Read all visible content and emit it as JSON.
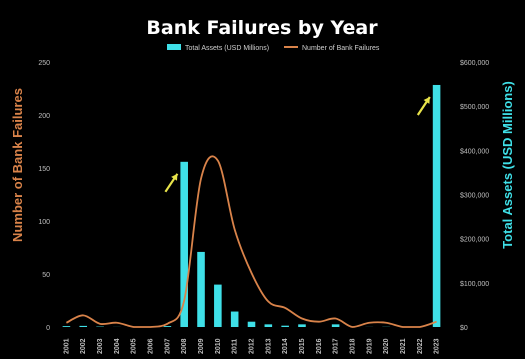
{
  "chart_data": {
    "type": "bar",
    "title": "Bank Failures by Year",
    "categories": [
      "2001",
      "2002",
      "2003",
      "2004",
      "2005",
      "2006",
      "2007",
      "2008",
      "2009",
      "2010",
      "2011",
      "2012",
      "2013",
      "2014",
      "2015",
      "2016",
      "2017",
      "2018",
      "2019",
      "2020",
      "2021",
      "2022",
      "2023"
    ],
    "series": [
      {
        "name": "Total Assets (USD Millions)",
        "kind": "bar",
        "axis": "right",
        "values": [
          2000,
          2500,
          900,
          200,
          0,
          0,
          2000,
          374000,
          170000,
          96000,
          35000,
          12000,
          6000,
          3000,
          6000,
          0,
          6000,
          0,
          200,
          400,
          0,
          0,
          548000
        ]
      },
      {
        "name": "Number of Bank Failures",
        "kind": "line",
        "axis": "left",
        "values": [
          4,
          11,
          3,
          4,
          0,
          0,
          3,
          25,
          140,
          157,
          92,
          51,
          24,
          18,
          8,
          5,
          8,
          0,
          4,
          4,
          0,
          0,
          5
        ]
      }
    ],
    "ylabel_left": "Number of Bank Failures",
    "ylabel_right": "Total Assets (USD Millions)",
    "ylim_left": [
      0,
      250
    ],
    "ylim_right": [
      0,
      600000
    ],
    "left_ticks": [
      "0",
      "50",
      "100",
      "150",
      "200",
      "250"
    ],
    "right_ticks": [
      "$0",
      "$100,000",
      "$200,000",
      "$300,000",
      "$400,000",
      "$500,000",
      "$600,000"
    ],
    "legend_placement": "top-center",
    "grid": false,
    "annotations": [
      "arrow at 2008 bar",
      "arrow at 2023 bar"
    ],
    "colors": {
      "background": "#000000",
      "bar": "#3fe0e8",
      "line": "#d9834a",
      "left_label": "#d9834a",
      "right_label": "#3fe0e8",
      "arrow": "#e8e34a",
      "title": "#ffffff",
      "tick": "#bfbfbf"
    }
  }
}
